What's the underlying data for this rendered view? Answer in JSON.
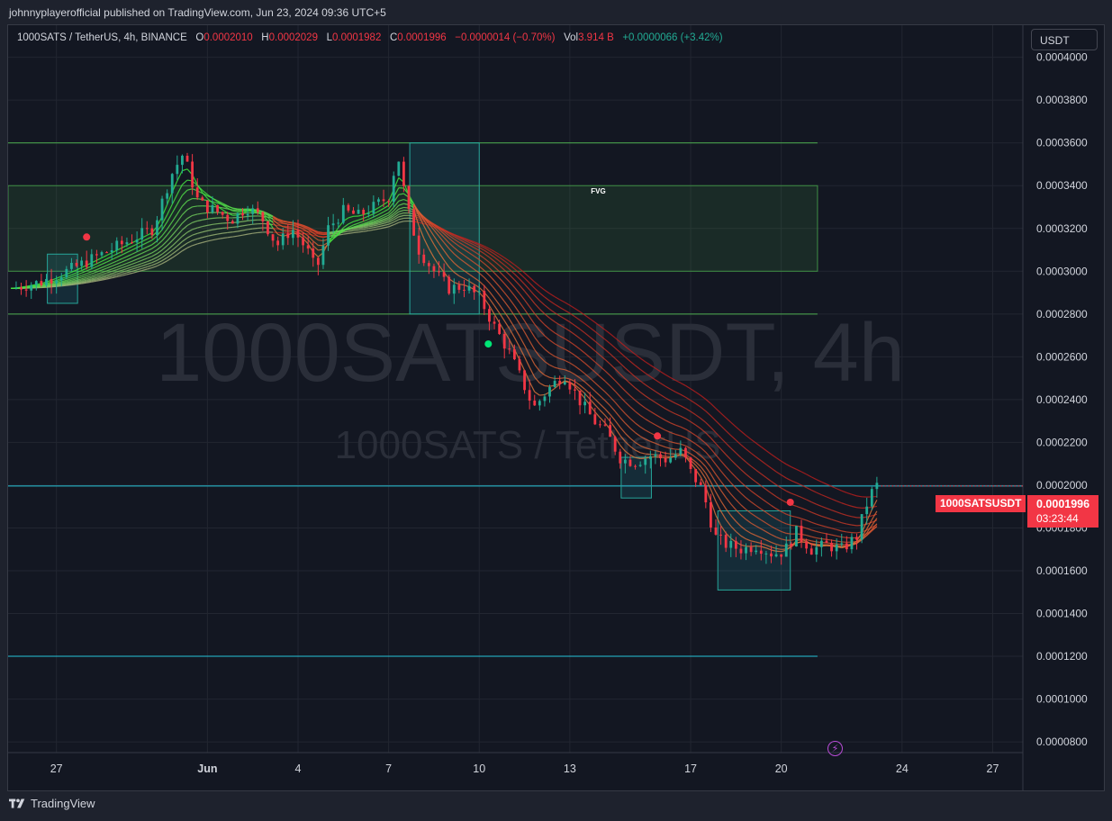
{
  "header": {
    "publisher_line": "johnnyplayerofficial published on TradingView.com, Jun 23, 2024 09:36 UTC+5"
  },
  "legend": {
    "symbol": "1000SATS / TetherUS, 4h, BINANCE",
    "o_label": "O",
    "o_value": "0.0002010",
    "h_label": "H",
    "h_value": "0.0002029",
    "l_label": "L",
    "l_value": "0.0001982",
    "c_label": "C",
    "c_value": "0.0001996",
    "change": "−0.0000014 (−0.70%)",
    "vol_label": "Vol",
    "vol_value": "3.914 B",
    "vol_change": "+0.0000066 (+3.42%)"
  },
  "currency_button": "USDT",
  "watermark": {
    "main": "1000SATSUSDT, 4h",
    "sub": "1000SATS / TetherUS"
  },
  "price_tag": {
    "symbol": "1000SATSUSDT",
    "price": "0.0001996",
    "countdown": "03:23:44"
  },
  "annotations": {
    "fvg": "FVG"
  },
  "footer": {
    "brand": "TradingView"
  },
  "icons": {
    "flash": "flash-icon",
    "logo": "tradingview-logo-icon"
  },
  "colors": {
    "up": "#22ab94",
    "down": "#f23645",
    "background": "#131722",
    "accent_line": "#26c6da"
  },
  "chart_data": {
    "type": "candlestick",
    "symbol": "1000SATSUSDT",
    "interval": "4h",
    "y_axis": {
      "ticks": [
        "0.0004000",
        "0.0003800",
        "0.0003600",
        "0.0003400",
        "0.0003200",
        "0.0003000",
        "0.0002800",
        "0.0002600",
        "0.0002400",
        "0.0002200",
        "0.0002000",
        "0.0001800",
        "0.0001600",
        "0.0001400",
        "0.0001200",
        "0.0001000",
        "0.0000800"
      ],
      "ylim": [
        7.5e-05,
        0.000415
      ]
    },
    "x_axis": {
      "ticks": [
        {
          "label": "27",
          "day": -4
        },
        {
          "label": "Jun",
          "day": 1
        },
        {
          "label": "4",
          "day": 4
        },
        {
          "label": "7",
          "day": 7
        },
        {
          "label": "10",
          "day": 10
        },
        {
          "label": "13",
          "day": 13
        },
        {
          "label": "17",
          "day": 17
        },
        {
          "label": "20",
          "day": 20
        },
        {
          "label": "24",
          "day": 24
        },
        {
          "label": "27",
          "day": 27
        }
      ],
      "xlim": [
        -5.6,
        28
      ]
    },
    "close_path": [
      [
        -5.5,
        0.000292
      ],
      [
        -4.5,
        0.000295
      ],
      [
        -3.5,
        0.000301
      ],
      [
        -2.5,
        0.000308
      ],
      [
        -1.5,
        0.000315
      ],
      [
        -0.8,
        0.00032
      ],
      [
        -0.2,
        0.000345
      ],
      [
        0.2,
        0.000355
      ],
      [
        0.7,
        0.000332
      ],
      [
        1.3,
        0.000328
      ],
      [
        1.8,
        0.000324
      ],
      [
        2.3,
        0.00033
      ],
      [
        2.8,
        0.000325
      ],
      [
        3.3,
        0.000312
      ],
      [
        3.8,
        0.00032
      ],
      [
        4.3,
        0.00031
      ],
      [
        4.6,
        0.0003
      ],
      [
        5.0,
        0.00032
      ],
      [
        5.5,
        0.000328
      ],
      [
        6.0,
        0.000326
      ],
      [
        6.5,
        0.00033
      ],
      [
        7.0,
        0.000335
      ],
      [
        7.3,
        0.000355
      ],
      [
        7.6,
        0.00033
      ],
      [
        8.0,
        0.00031
      ],
      [
        8.5,
        0.0003
      ],
      [
        9.0,
        0.000292
      ],
      [
        9.5,
        0.000293
      ],
      [
        10.0,
        0.000288
      ],
      [
        10.5,
        0.000274
      ],
      [
        11.0,
        0.000262
      ],
      [
        11.5,
        0.000246
      ],
      [
        11.8,
        0.000236
      ],
      [
        12.3,
        0.000245
      ],
      [
        12.8,
        0.000252
      ],
      [
        13.3,
        0.00024
      ],
      [
        13.8,
        0.00023
      ],
      [
        14.2,
        0.000225
      ],
      [
        14.7,
        0.000212
      ],
      [
        15.2,
        0.000211
      ],
      [
        15.7,
        0.000214
      ],
      [
        16.2,
        0.000212
      ],
      [
        16.7,
        0.000216
      ],
      [
        17.0,
        0.000206
      ],
      [
        17.3,
        0.0002
      ],
      [
        17.5,
        0.000192
      ],
      [
        17.8,
        0.000176
      ],
      [
        18.2,
        0.000172
      ],
      [
        18.7,
        0.00017
      ],
      [
        19.2,
        0.000172
      ],
      [
        19.7,
        0.000168
      ],
      [
        20.1,
        0.000169
      ],
      [
        20.5,
        0.000178
      ],
      [
        21.0,
        0.00017
      ],
      [
        21.5,
        0.000172
      ],
      [
        22.0,
        0.00017
      ],
      [
        22.5,
        0.000176
      ],
      [
        22.8,
        0.00019
      ],
      [
        23.1,
        0.0002
      ],
      [
        23.3,
        0.0001996
      ]
    ],
    "levels": [
      {
        "price": 0.00036,
        "color": "#4caf50"
      },
      {
        "price": 0.00028,
        "color": "#4caf50"
      },
      {
        "price": 0.00012,
        "color": "#26c6da"
      },
      {
        "price": 0.0001996,
        "color": "#26c6da"
      }
    ],
    "fvg_zone": {
      "from_day": -5.6,
      "to_day": 21.2,
      "low": 0.0003,
      "high": 0.00034
    },
    "boxes": [
      {
        "from_day": -4.3,
        "to_day": -3.3,
        "low": 0.000285,
        "high": 0.000308
      },
      {
        "from_day": 7.7,
        "to_day": 10.0,
        "low": 0.00028,
        "high": 0.00036
      },
      {
        "from_day": 14.7,
        "to_day": 15.7,
        "low": 0.000194,
        "high": 0.000213
      },
      {
        "from_day": 17.9,
        "to_day": 20.3,
        "low": 0.000151,
        "high": 0.000188
      }
    ],
    "signal_dots": [
      {
        "day": -3.0,
        "price": 0.000316,
        "color": "#f23645"
      },
      {
        "day": 10.3,
        "price": 0.000266,
        "color": "#00e676"
      },
      {
        "day": 15.9,
        "price": 0.000223,
        "color": "#f23645"
      },
      {
        "day": 20.3,
        "price": 0.000192,
        "color": "#f23645"
      }
    ]
  }
}
